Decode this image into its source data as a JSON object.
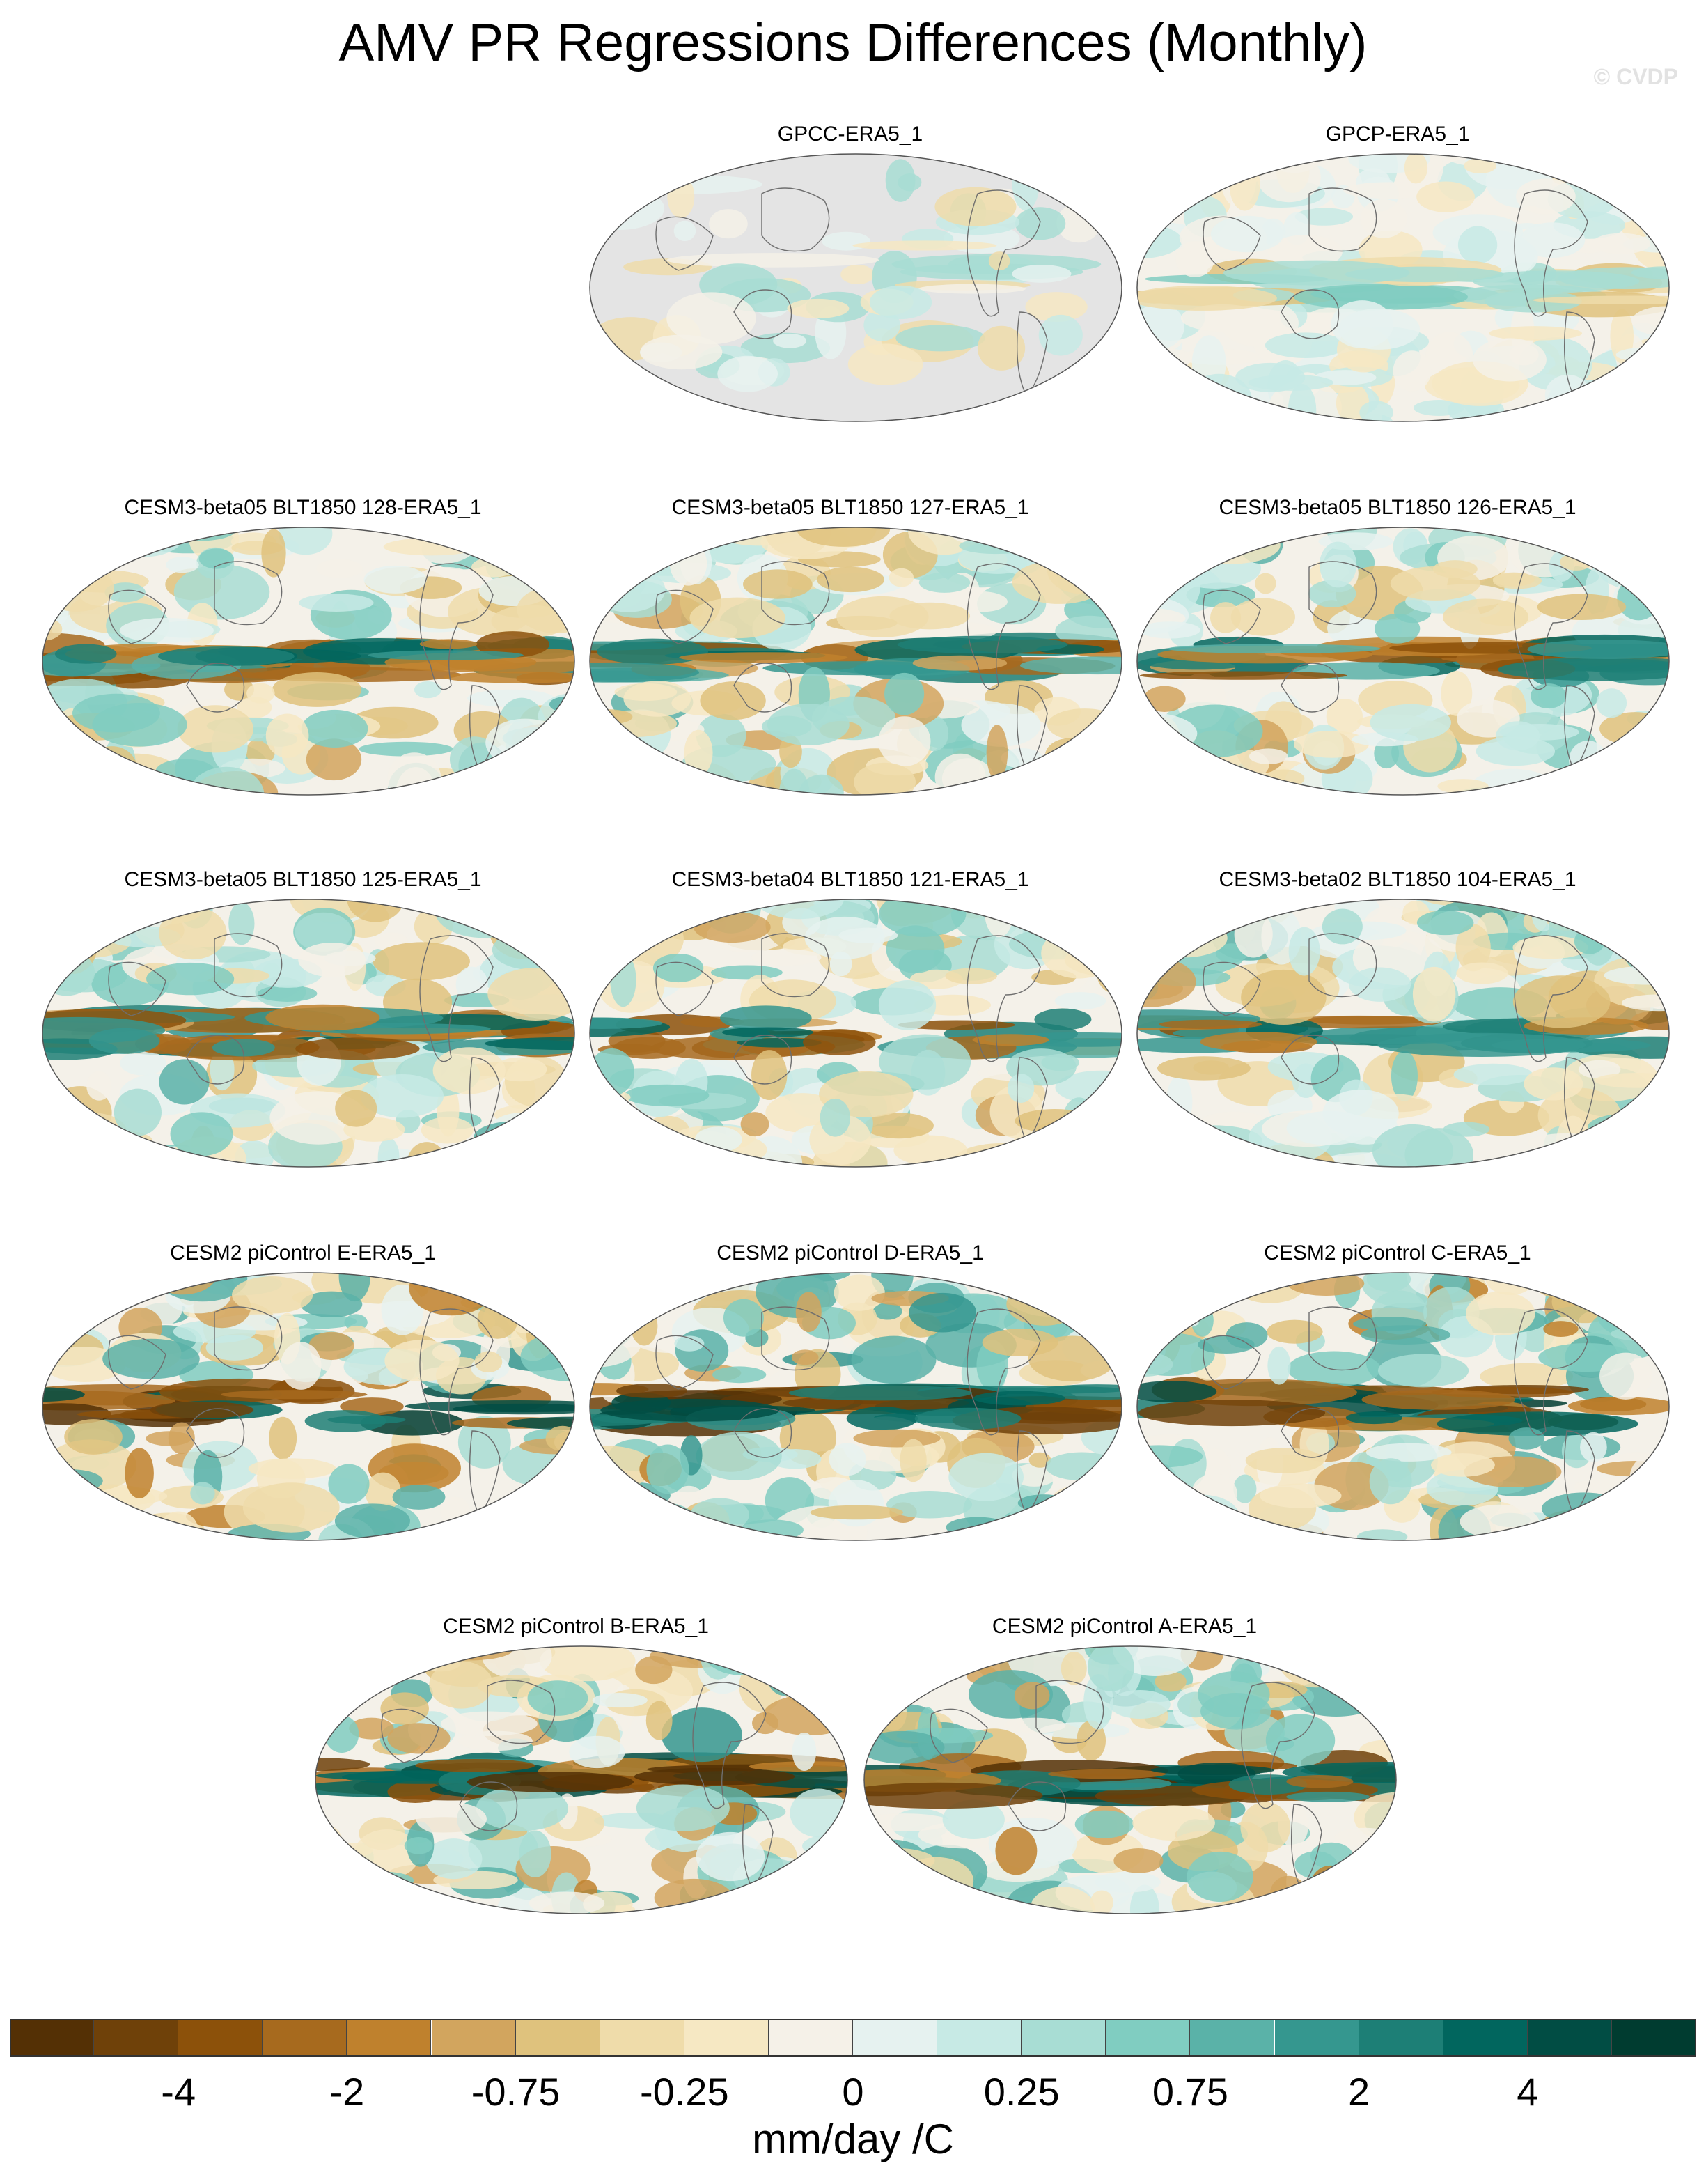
{
  "title": "AMV PR Regressions Differences (Monthly)",
  "watermark": "© CVDP",
  "panels": [
    {
      "label": "GPCC-ERA5_1",
      "style": "land-only"
    },
    {
      "label": "GPCP-ERA5_1",
      "style": "weak"
    },
    {
      "label": "CESM3-beta05 BLT1850 128-ERA5_1",
      "style": "full"
    },
    {
      "label": "CESM3-beta05 BLT1850 127-ERA5_1",
      "style": "full"
    },
    {
      "label": "CESM3-beta05 BLT1850 126-ERA5_1",
      "style": "full"
    },
    {
      "label": "CESM3-beta05 BLT1850 125-ERA5_1",
      "style": "full"
    },
    {
      "label": "CESM3-beta04 BLT1850 121-ERA5_1",
      "style": "full"
    },
    {
      "label": "CESM3-beta02 BLT1850 104-ERA5_1",
      "style": "full"
    },
    {
      "label": "CESM2 piControl E-ERA5_1",
      "style": "strong"
    },
    {
      "label": "CESM2 piControl D-ERA5_1",
      "style": "strong"
    },
    {
      "label": "CESM2 piControl C-ERA5_1",
      "style": "strong"
    },
    {
      "label": "CESM2 piControl B-ERA5_1",
      "style": "strong"
    },
    {
      "label": "CESM2 piControl A-ERA5_1",
      "style": "strong"
    }
  ],
  "colorbar": {
    "colors": [
      "#543005",
      "#6f4109",
      "#8c510a",
      "#a76a1e",
      "#bf812d",
      "#d2a55e",
      "#dfc27d",
      "#efdcaa",
      "#f6e8c3",
      "#f5f1e8",
      "#e6f2f0",
      "#c7eae5",
      "#a8ddd4",
      "#80cdc1",
      "#5ab2a8",
      "#35978f",
      "#1d7f76",
      "#01665e",
      "#014d44",
      "#003c30"
    ],
    "tick_labels": [
      "-4",
      "-2",
      "-0.75",
      "-0.25",
      "0",
      "0.25",
      "0.75",
      "2",
      "4"
    ],
    "units": "mm/day /C"
  }
}
